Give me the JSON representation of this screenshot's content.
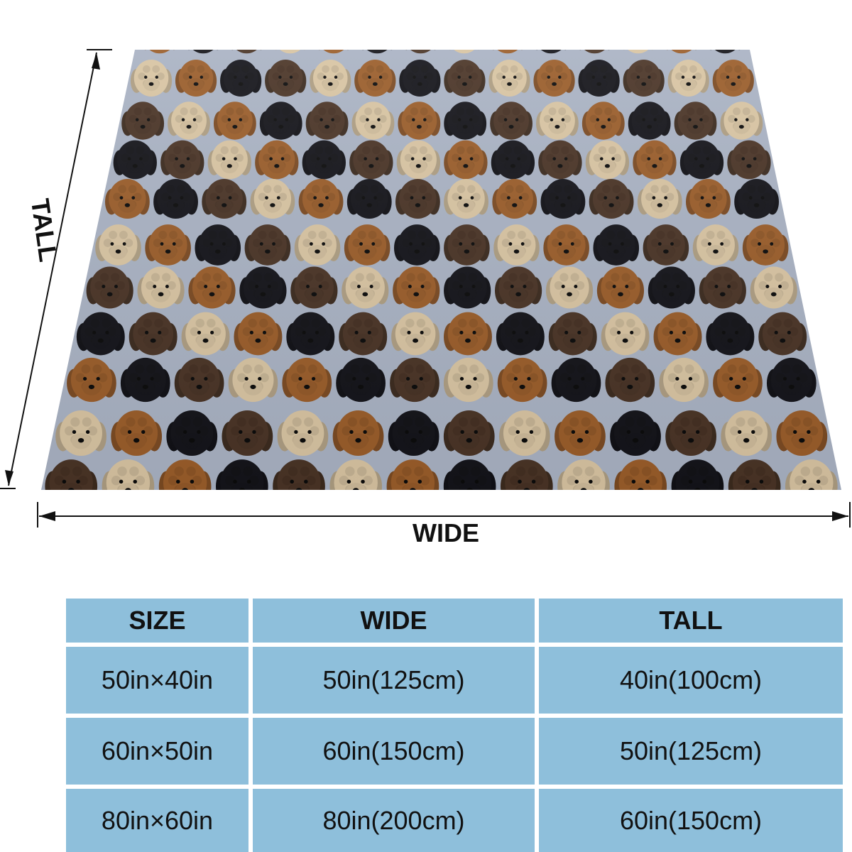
{
  "blanket": {
    "background_color": "#a9b2c3",
    "pattern": "repeating cockapoo dog face print",
    "dog_colors": [
      "#9a5d2a",
      "#14141a",
      "#4a3426",
      "#d8c4a2"
    ]
  },
  "dimensions": {
    "tall_label": "TALL",
    "wide_label": "WIDE"
  },
  "size_table": {
    "headers": {
      "size": "SIZE",
      "wide": "WIDE",
      "tall": "TALL"
    },
    "rows": [
      {
        "size": "50in×40in",
        "wide": "50in(125cm)",
        "tall": "40in(100cm)"
      },
      {
        "size": "60in×50in",
        "wide": "60in(150cm)",
        "tall": "50in(125cm)"
      },
      {
        "size": "80in×60in",
        "wide": "80in(200cm)",
        "tall": "60in(150cm)"
      }
    ],
    "cell_color": "#8ebfdb"
  }
}
